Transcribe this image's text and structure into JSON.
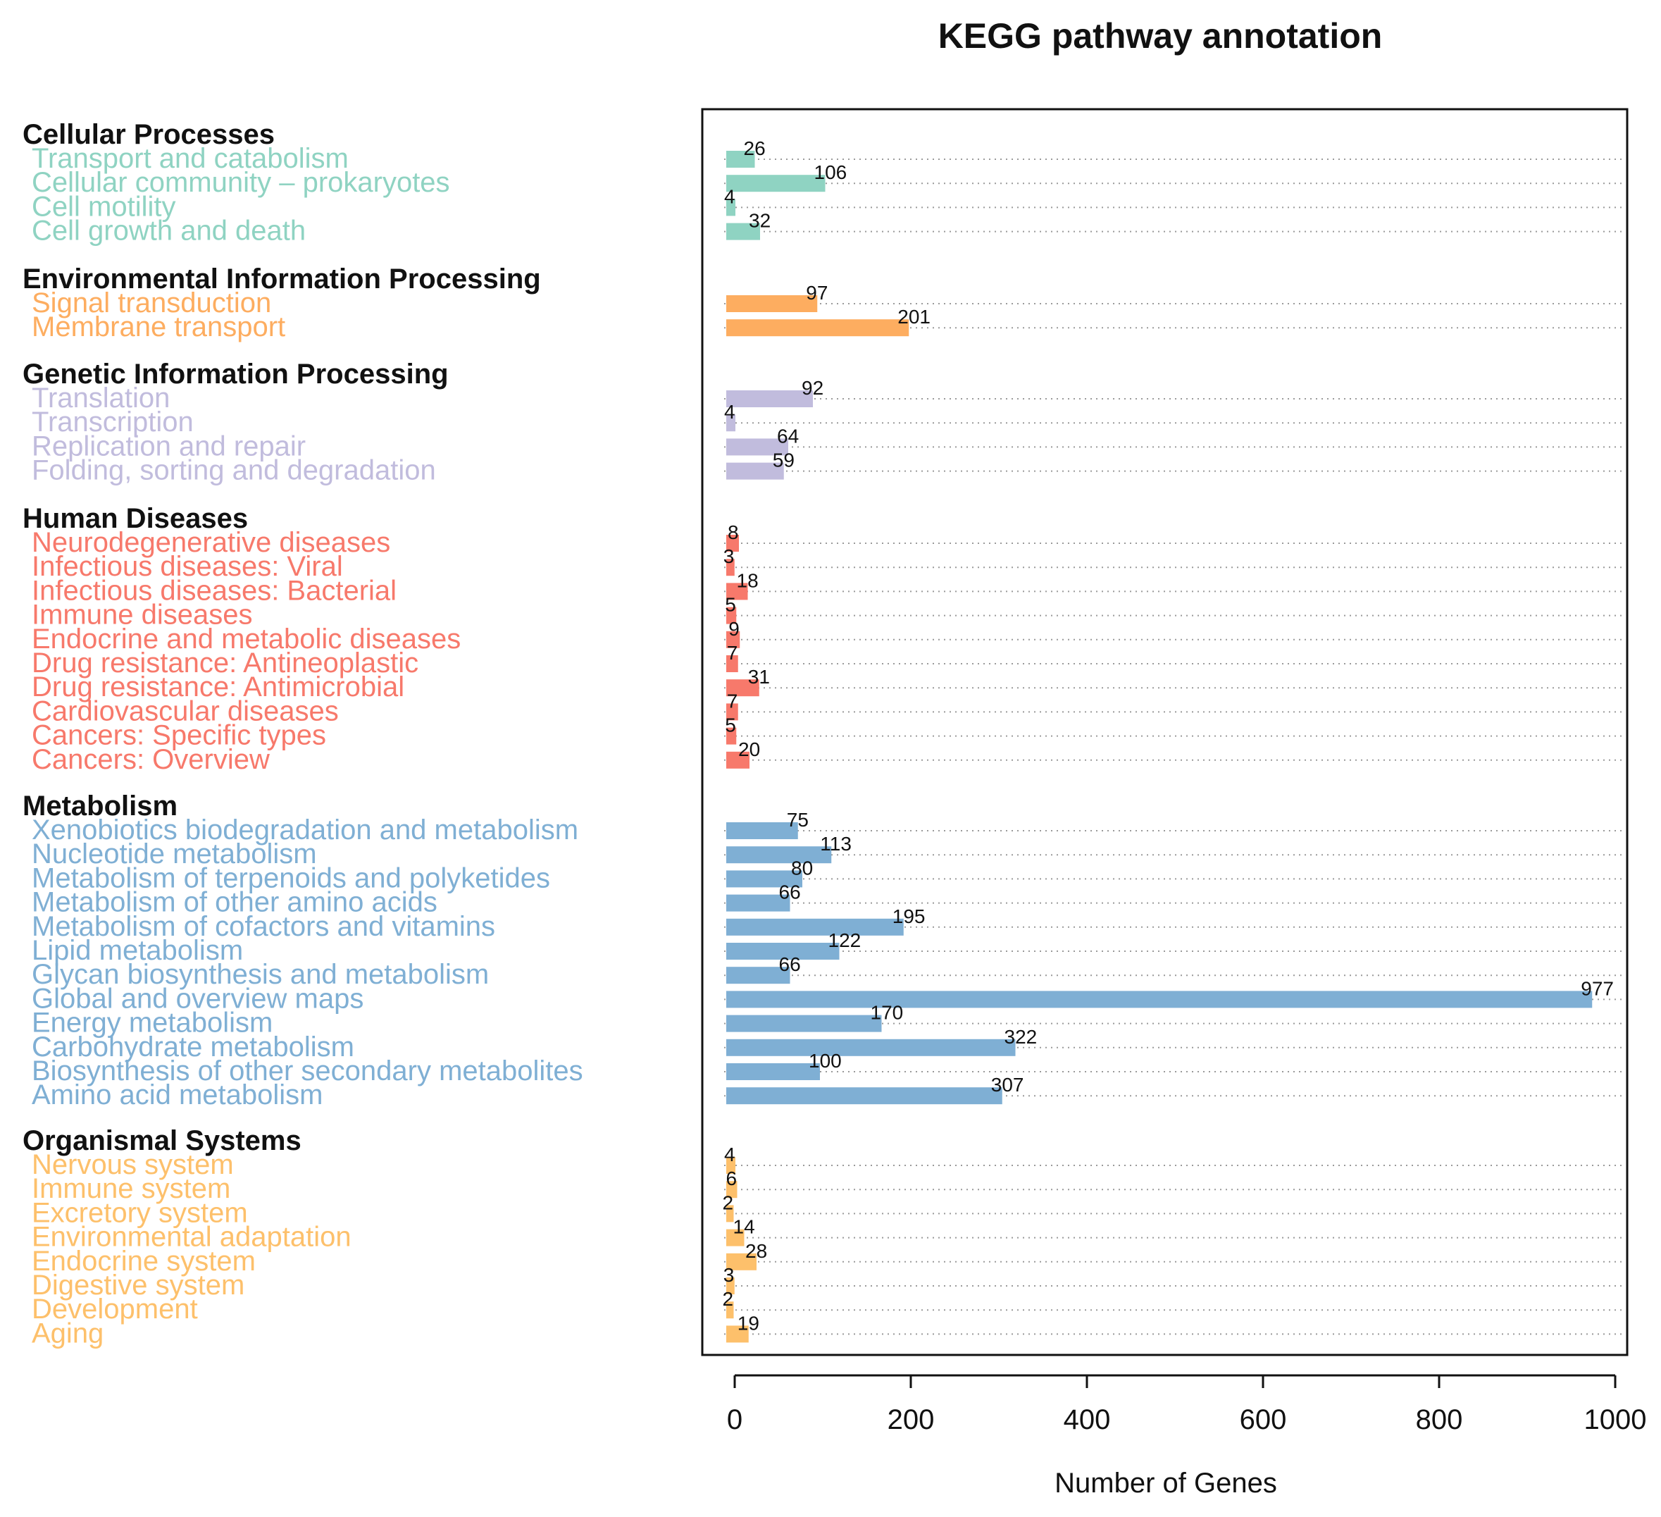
{
  "chart_data": {
    "type": "bar",
    "orientation": "horizontal",
    "title": "KEGG pathway annotation",
    "xlabel": "Number of Genes",
    "ylabel": "",
    "xlim": [
      0,
      1000
    ],
    "x_ticks": [
      "0",
      "200",
      "400",
      "600",
      "800",
      "1000"
    ],
    "grid": "dotted horizontal guide lines at each bar",
    "legend": "none",
    "groups": [
      {
        "name": "Cellular Processes",
        "color": "#8fd3c2",
        "items": [
          {
            "label": "Transport and catabolism",
            "value": 26
          },
          {
            "label": "Cellular community – prokaryotes",
            "value": 106
          },
          {
            "label": "Cell motility",
            "value": 4
          },
          {
            "label": "Cell growth and death",
            "value": 32
          }
        ]
      },
      {
        "name": "Environmental Information Processing",
        "color": "#fdad60",
        "items": [
          {
            "label": "Signal transduction",
            "value": 97
          },
          {
            "label": "Membrane transport",
            "value": 201
          }
        ]
      },
      {
        "name": "Genetic Information Processing",
        "color": "#c1bcdd",
        "items": [
          {
            "label": "Translation",
            "value": 92
          },
          {
            "label": "Transcription",
            "value": 4
          },
          {
            "label": "Replication and repair",
            "value": 64
          },
          {
            "label": "Folding, sorting and degradation",
            "value": 59
          }
        ]
      },
      {
        "name": "Human Diseases",
        "color": "#f7796b",
        "items": [
          {
            "label": "Neurodegenerative diseases",
            "value": 8
          },
          {
            "label": "Infectious diseases: Viral",
            "value": 3
          },
          {
            "label": "Infectious diseases: Bacterial",
            "value": 18
          },
          {
            "label": "Immune diseases",
            "value": 5
          },
          {
            "label": "Endocrine and metabolic diseases",
            "value": 9
          },
          {
            "label": "Drug resistance: Antineoplastic",
            "value": 7
          },
          {
            "label": "Drug resistance: Antimicrobial",
            "value": 31
          },
          {
            "label": "Cardiovascular diseases",
            "value": 7
          },
          {
            "label": "Cancers: Specific types",
            "value": 5
          },
          {
            "label": "Cancers: Overview",
            "value": 20
          }
        ]
      },
      {
        "name": "Metabolism",
        "color": "#7fafd4",
        "items": [
          {
            "label": "Xenobiotics biodegradation and metabolism",
            "value": 75
          },
          {
            "label": "Nucleotide metabolism",
            "value": 113
          },
          {
            "label": "Metabolism of terpenoids and polyketides",
            "value": 80
          },
          {
            "label": "Metabolism of other amino acids",
            "value": 66
          },
          {
            "label": "Metabolism of cofactors and vitamins",
            "value": 195
          },
          {
            "label": "Lipid metabolism",
            "value": 122
          },
          {
            "label": "Glycan biosynthesis and metabolism",
            "value": 66
          },
          {
            "label": "Global and overview maps",
            "value": 977
          },
          {
            "label": "Energy metabolism",
            "value": 170
          },
          {
            "label": "Carbohydrate metabolism",
            "value": 322
          },
          {
            "label": "Biosynthesis of other secondary metabolites",
            "value": 100
          },
          {
            "label": "Amino acid metabolism",
            "value": 307
          }
        ]
      },
      {
        "name": "Organismal Systems",
        "color": "#fdc06b",
        "items": [
          {
            "label": "Nervous system",
            "value": 4
          },
          {
            "label": "Immune system",
            "value": 6
          },
          {
            "label": "Excretory system",
            "value": 2
          },
          {
            "label": "Environmental adaptation",
            "value": 14
          },
          {
            "label": "Endocrine system",
            "value": 28
          },
          {
            "label": "Digestive system",
            "value": 3
          },
          {
            "label": "Development",
            "value": 2
          },
          {
            "label": "Aging",
            "value": 19
          }
        ]
      }
    ]
  }
}
